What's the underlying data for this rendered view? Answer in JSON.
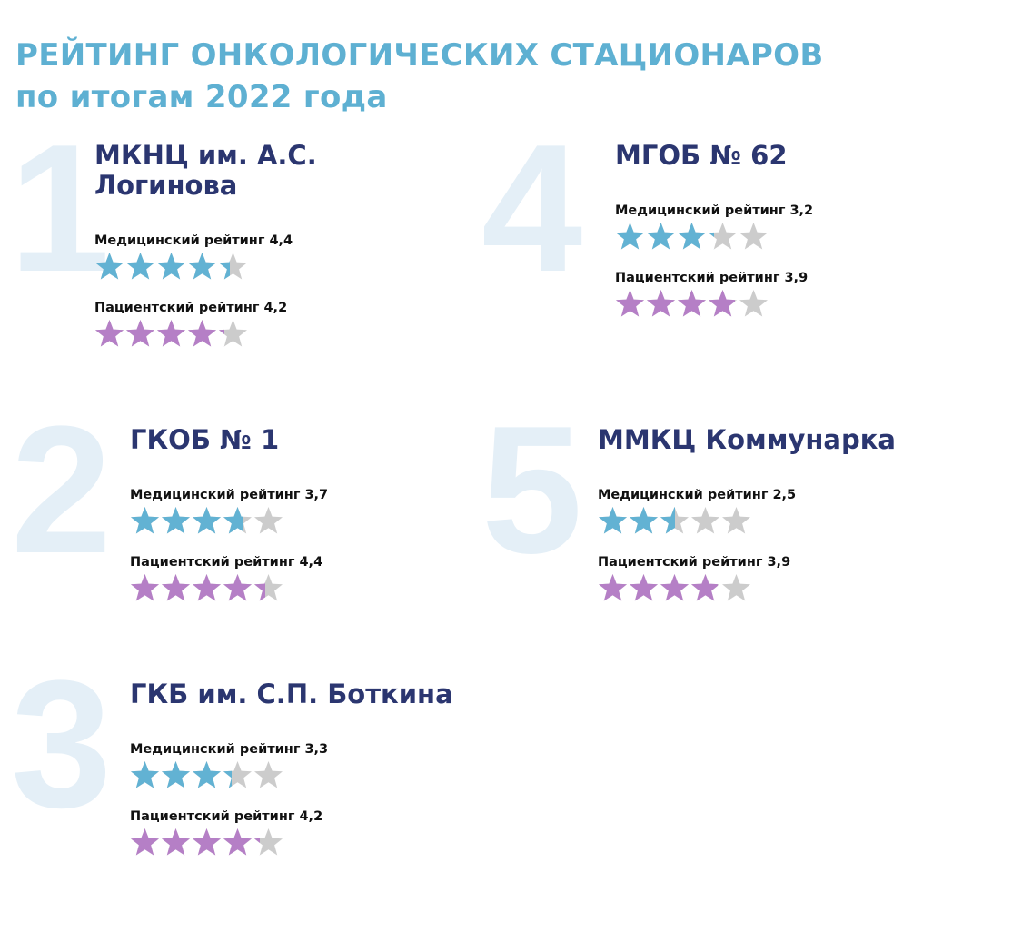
{
  "title": {
    "line1": "РЕЙТИНГ ОНКОЛОГИЧЕСКИХ СТАЦИОНАРОВ",
    "line2": "по итогам 2022 года"
  },
  "colors": {
    "title": "#5eb0d2",
    "name": "#2b3670",
    "medical_star": "#62b2d3",
    "patient_star": "#b57fc6",
    "empty_star": "#cccccc",
    "rank_number": "#e4eff7"
  },
  "max_stars": 5,
  "entries": [
    {
      "rank": "1",
      "name": "МКНЦ им. А.С.\nЛогинова",
      "medical": {
        "label": "Медицинский рейтинг 4,4",
        "value": 4.4
      },
      "patient": {
        "label": "Пациентский рейтинг 4,2",
        "value": 4.2
      }
    },
    {
      "rank": "2",
      "name": "ГКОБ № 1",
      "medical": {
        "label": "Медицинский рейтинг 3,7",
        "value": 3.7
      },
      "patient": {
        "label": "Пациентский рейтинг 4,4",
        "value": 4.4
      }
    },
    {
      "rank": "3",
      "name": "ГКБ им. С.П. Боткина",
      "medical": {
        "label": "Медицинский рейтинг 3,3",
        "value": 3.3
      },
      "patient": {
        "label": "Пациентский рейтинг 4,2",
        "value": 4.2
      }
    },
    {
      "rank": "4",
      "name": "МГОБ № 62",
      "medical": {
        "label": "Медицинский рейтинг 3,2",
        "value": 3.2
      },
      "patient": {
        "label": "Пациентский рейтинг 3,9",
        "value": 3.9
      }
    },
    {
      "rank": "5",
      "name": "ММКЦ Коммунарка",
      "medical": {
        "label": "Медицинский рейтинг 2,5",
        "value": 2.5
      },
      "patient": {
        "label": "Пациентский рейтинг 3,9",
        "value": 3.9
      }
    }
  ]
}
